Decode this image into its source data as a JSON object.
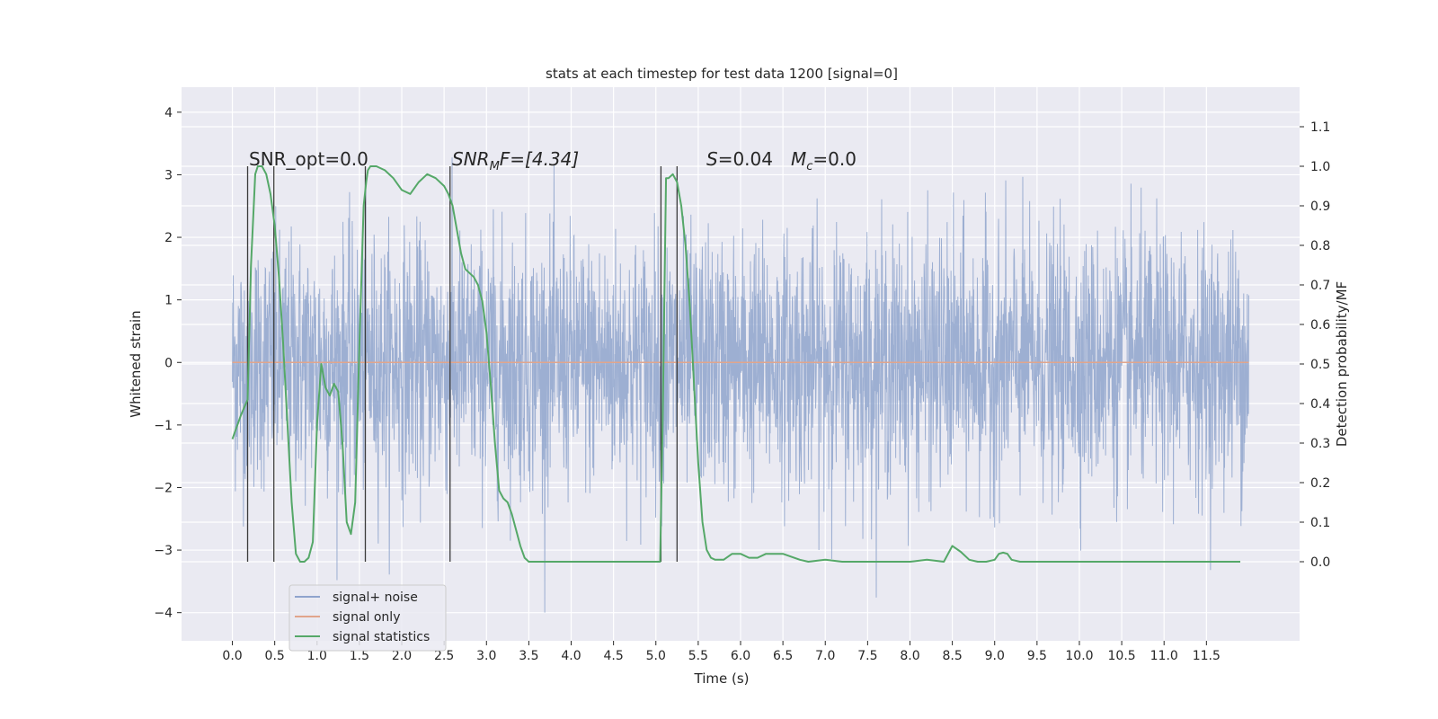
{
  "chart_data": {
    "type": "line",
    "title": "stats at each timestep for test data 1200 [signal=0]",
    "xlabel": "Time (s)",
    "ylabel": "Whitened strain",
    "y2label": "Detection probability/MF",
    "xlim": [
      -0.6,
      12.6
    ],
    "ylim": [
      -4.45,
      4.4
    ],
    "y2lim": [
      -0.2,
      1.2
    ],
    "grid": true,
    "legend_position": "lower-left",
    "x_ticks": [
      "0.0",
      "0.5",
      "1.0",
      "1.5",
      "2.0",
      "2.5",
      "3.0",
      "3.5",
      "4.0",
      "4.5",
      "5.0",
      "5.5",
      "6.0",
      "6.5",
      "7.0",
      "7.5",
      "8.0",
      "8.5",
      "9.0",
      "9.5",
      "10.0",
      "10.5",
      "11.0",
      "11.5"
    ],
    "y_ticks": [
      "4",
      "3",
      "2",
      "1",
      "0",
      "−1",
      "−2",
      "−3",
      "−4"
    ],
    "y2_ticks": [
      "1.1",
      "1.0",
      "0.9",
      "0.8",
      "0.7",
      "0.6",
      "0.5",
      "0.4",
      "0.3",
      "0.2",
      "0.1",
      "0.0"
    ],
    "annotations": {
      "snr_opt": "SNR_opt=0.0",
      "snr_mf_name": "SNR",
      "snr_mf_sub": "M",
      "snr_mf_rest": "F=[4.34]",
      "s_name": "S",
      "s_val": "=0.04",
      "mc_name": "M",
      "mc_sub": "c",
      "mc_val": "=0.0"
    },
    "series": [
      {
        "name": "signal+ noise",
        "color": "#8fa4cd",
        "note": "whitened strain noise, approx. std 1, peaks to about ±4",
        "x_range": [
          0.0,
          12.0
        ],
        "std": 1.0
      },
      {
        "name": "signal only",
        "color": "#e1a58c",
        "x": [
          0.0,
          12.0
        ],
        "y": [
          0.0,
          0.0
        ]
      },
      {
        "name": "signal statistics",
        "color": "#55a868",
        "x": [
          0.0,
          0.1,
          0.18,
          0.22,
          0.27,
          0.3,
          0.35,
          0.4,
          0.45,
          0.5,
          0.55,
          0.6,
          0.65,
          0.7,
          0.75,
          0.8,
          0.85,
          0.9,
          0.95,
          1.0,
          1.05,
          1.1,
          1.15,
          1.2,
          1.25,
          1.3,
          1.35,
          1.4,
          1.45,
          1.5,
          1.55,
          1.58,
          1.6,
          1.63,
          1.67,
          1.7,
          1.8,
          1.9,
          2.0,
          2.1,
          2.2,
          2.3,
          2.4,
          2.5,
          2.55,
          2.6,
          2.65,
          2.7,
          2.75,
          2.8,
          2.85,
          2.9,
          2.95,
          3.0,
          3.05,
          3.1,
          3.15,
          3.2,
          3.25,
          3.3,
          3.35,
          3.4,
          3.45,
          3.5,
          3.6,
          3.8,
          4.0,
          4.2,
          4.5,
          4.8,
          5.0,
          5.05,
          5.08,
          5.12,
          5.15,
          5.2,
          5.25,
          5.3,
          5.35,
          5.4,
          5.45,
          5.5,
          5.55,
          5.6,
          5.65,
          5.7,
          5.8,
          5.9,
          6.0,
          6.1,
          6.2,
          6.3,
          6.5,
          6.7,
          6.8,
          7.0,
          7.2,
          7.5,
          7.8,
          8.0,
          8.2,
          8.4,
          8.5,
          8.6,
          8.7,
          8.8,
          8.9,
          9.0,
          9.05,
          9.1,
          9.15,
          9.2,
          9.3,
          9.5,
          10.0,
          10.5,
          11.0,
          11.5,
          11.9
        ],
        "y": [
          0.31,
          0.37,
          0.41,
          0.75,
          0.98,
          1.0,
          1.0,
          0.98,
          0.93,
          0.85,
          0.72,
          0.55,
          0.35,
          0.15,
          0.02,
          0.0,
          0.0,
          0.01,
          0.05,
          0.35,
          0.5,
          0.44,
          0.42,
          0.45,
          0.43,
          0.3,
          0.1,
          0.07,
          0.15,
          0.55,
          0.9,
          0.96,
          0.99,
          1.0,
          1.0,
          1.0,
          0.99,
          0.97,
          0.94,
          0.93,
          0.96,
          0.98,
          0.97,
          0.95,
          0.93,
          0.9,
          0.84,
          0.78,
          0.74,
          0.73,
          0.72,
          0.7,
          0.66,
          0.58,
          0.45,
          0.3,
          0.18,
          0.16,
          0.15,
          0.12,
          0.08,
          0.04,
          0.01,
          0.0,
          0.0,
          0.0,
          0.0,
          0.0,
          0.0,
          0.0,
          0.0,
          0.0,
          0.35,
          0.97,
          0.97,
          0.98,
          0.96,
          0.9,
          0.8,
          0.65,
          0.45,
          0.25,
          0.1,
          0.03,
          0.01,
          0.005,
          0.005,
          0.02,
          0.02,
          0.01,
          0.01,
          0.02,
          0.02,
          0.005,
          0.0,
          0.005,
          0.0,
          0.0,
          0.0,
          0.0,
          0.005,
          0.0,
          0.04,
          0.025,
          0.005,
          0.0,
          0.0,
          0.005,
          0.02,
          0.023,
          0.02,
          0.005,
          0.0,
          0.0,
          0.0,
          0.0,
          0.0,
          0.0,
          0.0
        ]
      }
    ],
    "vlines": [
      0.18,
      0.49,
      1.57,
      2.57,
      5.06,
      5.25
    ]
  }
}
